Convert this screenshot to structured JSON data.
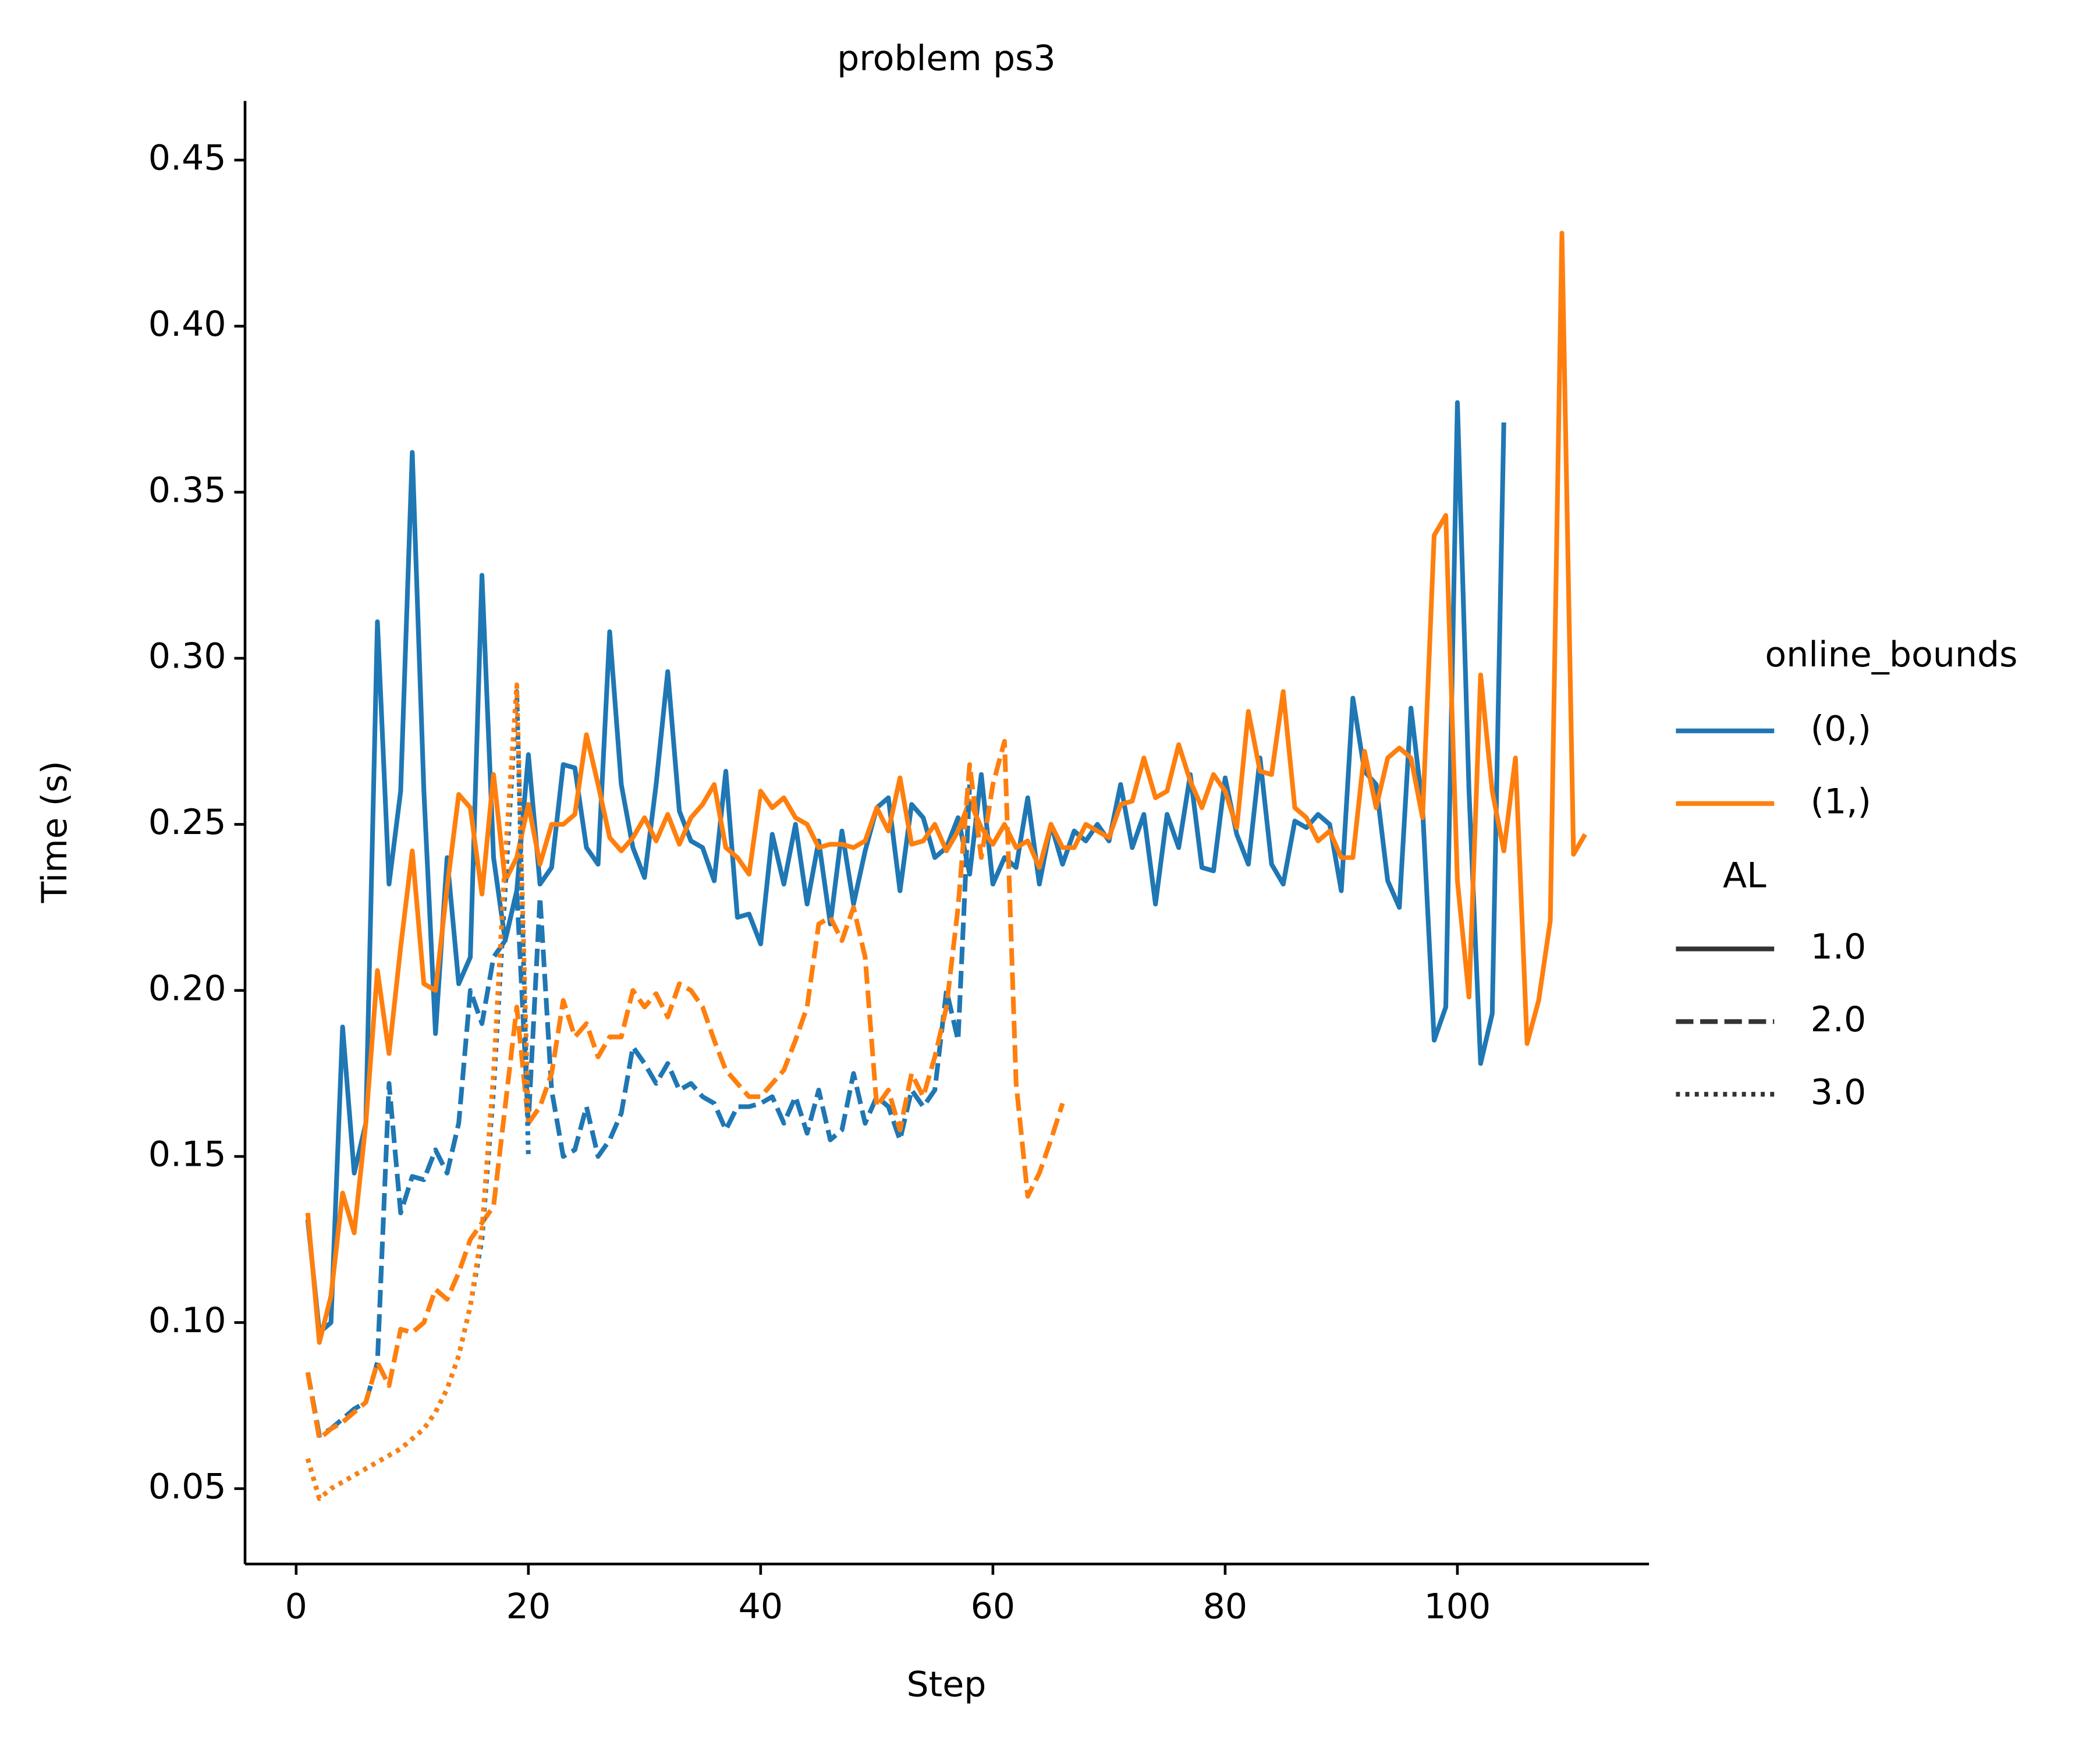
{
  "chart_data": {
    "type": "line",
    "title": "problem ps3",
    "x_label": "Step",
    "y_label": "Time (s)",
    "x": [
      1,
      2,
      3,
      4,
      5,
      6,
      7,
      8,
      9,
      10,
      11,
      12,
      13,
      14,
      15,
      16,
      17,
      18,
      19,
      20,
      21,
      22,
      23,
      24,
      25,
      26,
      27,
      28,
      29,
      30,
      31,
      32,
      33,
      34,
      35,
      36,
      37,
      38,
      39,
      40,
      41,
      42,
      43,
      44,
      45,
      46,
      47,
      48,
      49,
      50,
      51,
      52,
      53,
      54,
      55,
      56,
      57,
      58,
      59,
      60,
      61,
      62,
      63,
      64,
      65,
      66,
      67,
      68,
      69,
      70,
      71,
      72,
      73,
      74,
      75,
      76,
      77,
      78,
      79,
      80,
      81,
      82,
      83,
      84,
      85,
      86,
      87,
      88,
      89,
      90,
      91,
      92,
      93,
      94,
      95,
      96,
      97,
      98,
      99,
      100,
      101,
      102,
      103,
      104,
      105,
      106,
      107,
      108,
      109,
      110,
      111
    ],
    "xlim": [
      -4.4,
      116.5
    ],
    "ylim": [
      0.0273,
      0.4678
    ],
    "xticks": [
      0,
      20,
      40,
      60,
      80,
      100
    ],
    "yticks": [
      0.05,
      {
        "value": 0.1,
        "label": "0.10"
      },
      0.15,
      {
        "value": 0.2,
        "label": "0.20"
      },
      0.25,
      {
        "value": 0.3,
        "label": "0.30"
      },
      0.35,
      {
        "value": 0.4,
        "label": "0.40"
      },
      0.45
    ],
    "grid": false,
    "legend": {
      "position": "right",
      "hue_title": "online_bounds",
      "hue": [
        {
          "label": "(0,)",
          "color": "#1f77b4"
        },
        {
          "label": "(1,)",
          "color": "#ff7f0e"
        }
      ],
      "style_title": "AL",
      "style": [
        {
          "label": "1.0",
          "dash": "solid"
        },
        {
          "label": "2.0",
          "dash": "dashed"
        },
        {
          "label": "3.0",
          "dash": "dotted"
        }
      ]
    },
    "series": [
      {
        "color": "#1f77b4",
        "dash": "solid",
        "values": [
          0.131,
          0.097,
          0.1,
          0.189,
          0.145,
          0.16,
          0.311,
          0.232,
          0.26,
          0.362,
          0.26,
          0.187,
          0.24,
          0.202,
          0.21,
          0.325,
          0.24,
          0.215,
          0.23,
          0.271,
          0.232,
          0.237,
          0.268,
          0.267,
          0.243,
          0.238,
          0.308,
          0.262,
          0.243,
          0.234,
          0.262,
          0.296,
          0.254,
          0.245,
          0.243,
          0.233,
          0.266,
          0.222,
          0.223,
          0.214,
          0.247,
          0.232,
          0.25,
          0.226,
          0.245,
          0.22,
          0.248,
          0.226,
          0.242,
          0.255,
          0.258,
          0.23,
          0.256,
          0.252,
          0.24,
          0.243,
          0.252,
          0.235,
          0.265,
          0.232,
          0.24,
          0.237,
          0.258,
          0.232,
          0.25,
          0.238,
          0.248,
          0.245,
          0.25,
          0.245,
          0.262,
          0.243,
          0.253,
          0.226,
          0.253,
          0.243,
          0.265,
          0.237,
          0.236,
          0.264,
          0.247,
          0.238,
          0.27,
          0.238,
          0.232,
          0.251,
          0.249,
          0.253,
          0.25,
          0.23,
          0.288,
          0.266,
          0.262,
          0.233,
          0.225,
          0.285,
          0.255,
          0.185,
          0.195,
          0.377,
          0.26,
          0.178,
          0.193,
          0.371,
          null,
          null,
          null,
          null,
          null,
          null,
          null
        ]
      },
      {
        "color": "#ff7f0e",
        "dash": "solid",
        "values": [
          0.133,
          0.094,
          0.108,
          0.139,
          0.127,
          0.16,
          0.206,
          0.181,
          0.213,
          0.242,
          0.202,
          0.2,
          0.231,
          0.259,
          0.255,
          0.229,
          0.265,
          0.233,
          0.24,
          0.256,
          0.238,
          0.25,
          0.25,
          0.253,
          0.277,
          0.262,
          0.246,
          0.242,
          0.246,
          0.252,
          0.245,
          0.253,
          0.244,
          0.252,
          0.256,
          0.262,
          0.243,
          0.24,
          0.235,
          0.26,
          0.255,
          0.258,
          0.252,
          0.25,
          0.243,
          0.244,
          0.244,
          0.243,
          0.245,
          0.255,
          0.248,
          0.264,
          0.244,
          0.245,
          0.25,
          0.242,
          0.248,
          0.257,
          0.249,
          0.244,
          0.25,
          0.243,
          0.245,
          0.237,
          0.25,
          0.243,
          0.243,
          0.25,
          0.248,
          0.246,
          0.256,
          0.257,
          0.27,
          0.258,
          0.26,
          0.274,
          0.263,
          0.255,
          0.265,
          0.26,
          0.249,
          0.284,
          0.266,
          0.265,
          0.29,
          0.255,
          0.252,
          0.245,
          0.248,
          0.24,
          0.24,
          0.272,
          0.255,
          0.27,
          0.273,
          0.27,
          0.252,
          0.337,
          0.343,
          0.233,
          0.198,
          0.295,
          0.26,
          0.242,
          0.27,
          0.184,
          0.197,
          0.221,
          0.428,
          0.241,
          0.247
        ]
      },
      {
        "color": "#1f77b4",
        "dash": "dashed",
        "values": [
          0.085,
          0.066,
          0.068,
          0.071,
          0.074,
          0.076,
          0.088,
          0.172,
          0.133,
          0.144,
          0.143,
          0.152,
          0.145,
          0.16,
          0.2,
          0.19,
          0.21,
          0.215,
          0.23,
          0.16,
          0.228,
          0.17,
          0.15,
          0.152,
          0.165,
          0.15,
          0.155,
          0.163,
          0.183,
          0.178,
          0.172,
          0.178,
          0.17,
          0.172,
          0.168,
          0.166,
          0.158,
          0.165,
          0.165,
          0.166,
          0.168,
          0.16,
          0.168,
          0.157,
          0.17,
          0.155,
          0.158,
          0.175,
          0.16,
          0.168,
          0.165,
          0.155,
          0.17,
          0.165,
          0.17,
          0.2,
          0.185,
          0.262,
          null,
          null,
          null,
          null,
          null,
          null,
          null,
          null,
          null,
          null,
          null,
          null,
          null,
          null,
          null,
          null,
          null,
          null,
          null,
          null,
          null,
          null,
          null,
          null,
          null,
          null,
          null,
          null,
          null,
          null,
          null,
          null,
          null,
          null,
          null,
          null,
          null,
          null,
          null,
          null,
          null,
          null,
          null,
          null,
          null,
          null,
          null,
          null,
          null,
          null,
          null,
          null,
          null
        ]
      },
      {
        "color": "#ff7f0e",
        "dash": "dashed",
        "values": [
          0.085,
          0.065,
          0.068,
          0.07,
          0.073,
          0.076,
          0.088,
          0.081,
          0.098,
          0.097,
          0.1,
          0.11,
          0.107,
          0.115,
          0.125,
          0.13,
          0.135,
          0.165,
          0.195,
          0.16,
          0.165,
          0.175,
          0.197,
          0.186,
          0.19,
          0.18,
          0.186,
          0.186,
          0.2,
          0.195,
          0.199,
          0.192,
          0.202,
          0.2,
          0.195,
          0.185,
          0.176,
          0.172,
          0.168,
          0.168,
          0.172,
          0.176,
          0.185,
          0.195,
          0.22,
          0.222,
          0.215,
          0.225,
          0.21,
          0.165,
          0.17,
          0.158,
          0.175,
          0.168,
          0.18,
          0.195,
          0.225,
          0.268,
          0.24,
          0.262,
          0.275,
          0.172,
          0.138,
          0.145,
          0.155,
          0.166,
          null,
          null,
          null,
          null,
          null,
          null,
          null,
          null,
          null,
          null,
          null,
          null,
          null,
          null,
          null,
          null,
          null,
          null,
          null,
          null,
          null,
          null,
          null,
          null,
          null,
          null,
          null,
          null,
          null,
          null,
          null,
          null,
          null,
          null,
          null,
          null,
          null,
          null,
          null,
          null,
          null,
          null,
          null,
          null,
          null
        ]
      },
      {
        "color": "#1f77b4",
        "dash": "dotted",
        "values": [
          0.059,
          0.047,
          0.05,
          0.052,
          0.054,
          0.056,
          0.058,
          0.06,
          0.062,
          0.065,
          0.068,
          0.073,
          0.08,
          0.09,
          0.105,
          0.125,
          0.17,
          0.23,
          0.29,
          0.15,
          null,
          null,
          null,
          null,
          null,
          null,
          null,
          null,
          null,
          null,
          null,
          null,
          null,
          null,
          null,
          null,
          null,
          null,
          null,
          null,
          null,
          null,
          null,
          null,
          null,
          null,
          null,
          null,
          null,
          null,
          null,
          null,
          null,
          null,
          null,
          null,
          null,
          null,
          null,
          null,
          null,
          null,
          null,
          null,
          null,
          null,
          null,
          null,
          null,
          null,
          null,
          null,
          null,
          null,
          null,
          null,
          null,
          null,
          null,
          null,
          null,
          null,
          null,
          null,
          null,
          null,
          null,
          null,
          null,
          null,
          null,
          null,
          null,
          null,
          null,
          null,
          null,
          null,
          null,
          null,
          null,
          null,
          null,
          null,
          null,
          null,
          null,
          null,
          null,
          null,
          null
        ]
      },
      {
        "color": "#ff7f0e",
        "dash": "dotted",
        "values": [
          0.059,
          0.047,
          0.05,
          0.052,
          0.054,
          0.056,
          0.058,
          0.06,
          0.062,
          0.065,
          0.068,
          0.073,
          0.08,
          0.09,
          0.105,
          0.128,
          0.175,
          0.24,
          0.292,
          0.16,
          null,
          null,
          null,
          null,
          null,
          null,
          null,
          null,
          null,
          null,
          null,
          null,
          null,
          null,
          null,
          null,
          null,
          null,
          null,
          null,
          null,
          null,
          null,
          null,
          null,
          null,
          null,
          null,
          null,
          null,
          null,
          null,
          null,
          null,
          null,
          null,
          null,
          null,
          null,
          null,
          null,
          null,
          null,
          null,
          null,
          null,
          null,
          null,
          null,
          null,
          null,
          null,
          null,
          null,
          null,
          null,
          null,
          null,
          null,
          null,
          null,
          null,
          null,
          null,
          null,
          null,
          null,
          null,
          null,
          null,
          null,
          null,
          null,
          null,
          null,
          null,
          null,
          null,
          null,
          null,
          null,
          null,
          null,
          null,
          null,
          null,
          null,
          null,
          null,
          null,
          null
        ]
      }
    ]
  }
}
